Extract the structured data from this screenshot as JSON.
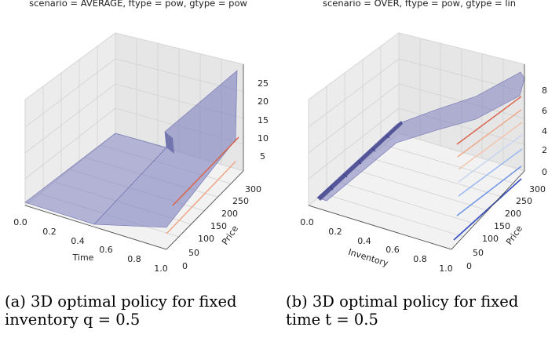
{
  "chart_data": [
    {
      "type": "surface3d",
      "title": "scenario = AVERAGE, ftype = pow, gtype = pow",
      "xlabel": "Time",
      "ylabel": "Price",
      "zlabel": "",
      "x_ticks": [
        "0.0",
        "0.2",
        "0.4",
        "0.6",
        "0.8",
        "1.0"
      ],
      "y_ticks": [
        "0",
        "50",
        "100",
        "150",
        "200",
        "250",
        "300"
      ],
      "z_ticks": [
        "5",
        "10",
        "15",
        "20",
        "25"
      ],
      "xlim": [
        0,
        1
      ],
      "ylim": [
        0,
        300
      ],
      "zlim": [
        0,
        28
      ],
      "surface_color": "#7d7fbd",
      "surface_profile": {
        "x": [
          0.0,
          0.2,
          0.4,
          0.6,
          0.7,
          0.8,
          0.85,
          0.9,
          0.95,
          1.0
        ],
        "flat_value": 0,
        "price_threshold": 175,
        "above_threshold_values": [
          0,
          0,
          0,
          0,
          0.3,
          1,
          1.8,
          3,
          5.5,
          27
        ]
      },
      "lines": [
        {
          "price": 205,
          "z": [
            0,
            6
          ],
          "color": "#d9664f"
        },
        {
          "price": 245,
          "z": [
            0,
            4
          ],
          "color": "#eea98c"
        }
      ],
      "grid": true
    },
    {
      "type": "surface3d",
      "title": "scenario = OVER, ftype = pow, gtype = lin",
      "xlabel": "Inventory",
      "ylabel": "Price",
      "zlabel": "",
      "x_ticks": [
        "0.0",
        "0.2",
        "0.4",
        "0.6",
        "0.8",
        "1.0"
      ],
      "y_ticks": [
        "0",
        "50",
        "100",
        "150",
        "200",
        "250",
        "300"
      ],
      "z_ticks": [
        "0",
        "2",
        "4",
        "6",
        "8"
      ],
      "xlim": [
        0,
        1
      ],
      "ylim": [
        0,
        300
      ],
      "zlim": [
        0,
        9
      ],
      "surface_color": "#7d7fbd",
      "surface_profile": {
        "x": [
          0.0,
          0.2,
          0.4,
          0.6,
          0.8,
          1.0
        ],
        "low_price_value": 0,
        "high_price_values": [
          3.5,
          5.2,
          6.3,
          7.2,
          8.0,
          8.8
        ]
      },
      "lines": [
        {
          "price": 150,
          "z": [
            0,
            8
          ],
          "color": "#d9664f"
        },
        {
          "price": 175,
          "z": [
            0,
            7
          ],
          "color": "#eea98c"
        },
        {
          "price": 200,
          "z": [
            0,
            6
          ],
          "color": "#f3c5b0"
        },
        {
          "price": 215,
          "z": [
            0,
            5
          ],
          "color": "#c9d6f0"
        },
        {
          "price": 240,
          "z": [
            0,
            4
          ],
          "color": "#9bb8f0"
        },
        {
          "price": 265,
          "z": [
            0,
            3
          ],
          "color": "#6f93e8"
        },
        {
          "price": 295,
          "z": [
            0,
            2
          ],
          "color": "#3b53c2"
        }
      ],
      "grid": true
    }
  ],
  "captions": {
    "a": {
      "line1": "(a) 3D optimal policy for fixed",
      "line2": "inventory q = 0.5"
    },
    "b": {
      "line1": "(b) 3D optimal policy for fixed",
      "line2": "time t = 0.5"
    }
  }
}
